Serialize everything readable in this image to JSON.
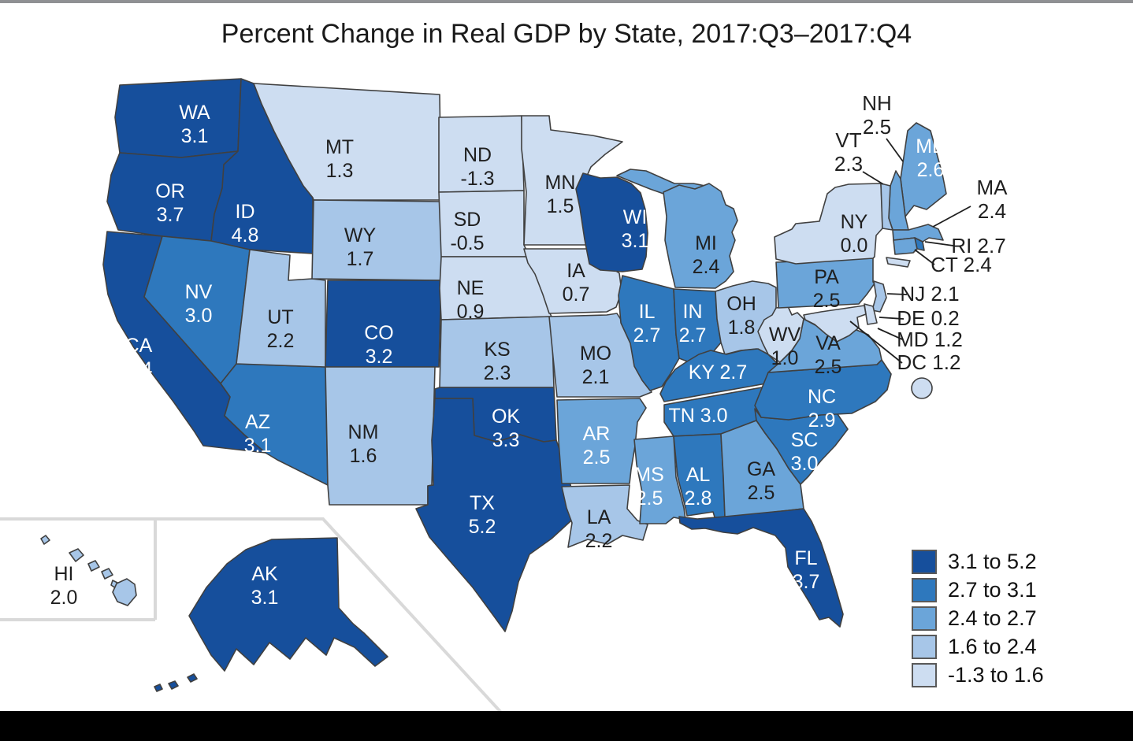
{
  "title": "Percent Change in Real GDP by State, 2017:Q3–2017:Q4",
  "legend": {
    "entries": [
      {
        "label": "3.1 to 5.2",
        "color": "#164f9c"
      },
      {
        "label": "2.7 to 3.1",
        "color": "#2e78bd"
      },
      {
        "label": "2.4 to 2.7",
        "color": "#6ba5d9"
      },
      {
        "label": "1.6 to 2.4",
        "color": "#a7c6e8"
      },
      {
        "label": "-1.3 to 1.6",
        "color": "#cdddf1"
      }
    ]
  },
  "colors": {
    "state_border": "#404040",
    "label_dark": "#1f1f1f",
    "label_light": "#ffffff",
    "inset_line": "#d9d9d9",
    "leader_line": "#1f1f1f",
    "bottom_bar": "#000000"
  },
  "chart_data": {
    "type": "choropleth",
    "title": "Percent Change in Real GDP by State, 2017:Q3–2017:Q4",
    "unit": "percent change in real GDP",
    "legend_bins": [
      "3.1 to 5.2",
      "2.7 to 3.1",
      "2.4 to 2.7",
      "1.6 to 2.4",
      "-1.3 to 1.6"
    ],
    "states": [
      {
        "abbr": "WA",
        "value": 3.1,
        "display": "3.1",
        "bin": 0,
        "label_style": "light"
      },
      {
        "abbr": "OR",
        "value": 3.7,
        "display": "3.7",
        "bin": 0,
        "label_style": "light"
      },
      {
        "abbr": "CA",
        "value": 3.4,
        "display": "3.4",
        "bin": 0,
        "label_style": "light"
      },
      {
        "abbr": "ID",
        "value": 4.8,
        "display": "4.8",
        "bin": 0,
        "label_style": "light"
      },
      {
        "abbr": "NV",
        "value": 3.0,
        "display": "3.0",
        "bin": 1,
        "label_style": "light"
      },
      {
        "abbr": "AZ",
        "value": 3.1,
        "display": "3.1",
        "bin": 1,
        "label_style": "light"
      },
      {
        "abbr": "UT",
        "value": 2.2,
        "display": "2.2",
        "bin": 3,
        "label_style": "dark"
      },
      {
        "abbr": "MT",
        "value": 1.3,
        "display": "1.3",
        "bin": 4,
        "label_style": "dark"
      },
      {
        "abbr": "WY",
        "value": 1.7,
        "display": "1.7",
        "bin": 3,
        "label_style": "dark"
      },
      {
        "abbr": "CO",
        "value": 3.2,
        "display": "3.2",
        "bin": 0,
        "label_style": "light"
      },
      {
        "abbr": "NM",
        "value": 1.6,
        "display": "1.6",
        "bin": 3,
        "label_style": "dark"
      },
      {
        "abbr": "ND",
        "value": -1.3,
        "display": "-1.3",
        "bin": 4,
        "label_style": "dark"
      },
      {
        "abbr": "SD",
        "value": -0.5,
        "display": "-0.5",
        "bin": 4,
        "label_style": "dark"
      },
      {
        "abbr": "NE",
        "value": 0.9,
        "display": "0.9",
        "bin": 4,
        "label_style": "dark"
      },
      {
        "abbr": "KS",
        "value": 2.3,
        "display": "2.3",
        "bin": 3,
        "label_style": "dark"
      },
      {
        "abbr": "OK",
        "value": 3.3,
        "display": "3.3",
        "bin": 0,
        "label_style": "light"
      },
      {
        "abbr": "TX",
        "value": 5.2,
        "display": "5.2",
        "bin": 0,
        "label_style": "light"
      },
      {
        "abbr": "MN",
        "value": 1.5,
        "display": "1.5",
        "bin": 4,
        "label_style": "dark"
      },
      {
        "abbr": "IA",
        "value": 0.7,
        "display": "0.7",
        "bin": 4,
        "label_style": "dark"
      },
      {
        "abbr": "MO",
        "value": 2.1,
        "display": "2.1",
        "bin": 3,
        "label_style": "dark"
      },
      {
        "abbr": "AR",
        "value": 2.5,
        "display": "2.5",
        "bin": 2,
        "label_style": "light"
      },
      {
        "abbr": "LA",
        "value": 2.2,
        "display": "2.2",
        "bin": 3,
        "label_style": "dark"
      },
      {
        "abbr": "WI",
        "value": 3.1,
        "display": "3.1",
        "bin": 0,
        "label_style": "light"
      },
      {
        "abbr": "IL",
        "value": 2.7,
        "display": "2.7",
        "bin": 1,
        "label_style": "light"
      },
      {
        "abbr": "IN",
        "value": 2.7,
        "display": "2.7",
        "bin": 1,
        "label_style": "light"
      },
      {
        "abbr": "MI",
        "value": 2.4,
        "display": "2.4",
        "bin": 2,
        "label_style": "dark"
      },
      {
        "abbr": "OH",
        "value": 1.8,
        "display": "1.8",
        "bin": 3,
        "label_style": "dark"
      },
      {
        "abbr": "KY",
        "value": 2.7,
        "display": "2.7",
        "bin": 1,
        "label_style": "light"
      },
      {
        "abbr": "TN",
        "value": 3.0,
        "display": "3.0",
        "bin": 1,
        "label_style": "light"
      },
      {
        "abbr": "MS",
        "value": 2.5,
        "display": "2.5",
        "bin": 2,
        "label_style": "light"
      },
      {
        "abbr": "AL",
        "value": 2.8,
        "display": "2.8",
        "bin": 1,
        "label_style": "light"
      },
      {
        "abbr": "GA",
        "value": 2.5,
        "display": "2.5",
        "bin": 2,
        "label_style": "dark"
      },
      {
        "abbr": "FL",
        "value": 3.7,
        "display": "3.7",
        "bin": 0,
        "label_style": "light"
      },
      {
        "abbr": "SC",
        "value": 3.0,
        "display": "3.0",
        "bin": 1,
        "label_style": "light"
      },
      {
        "abbr": "NC",
        "value": 2.9,
        "display": "2.9",
        "bin": 1,
        "label_style": "light"
      },
      {
        "abbr": "VA",
        "value": 2.5,
        "display": "2.5",
        "bin": 2,
        "label_style": "dark"
      },
      {
        "abbr": "WV",
        "value": 1.0,
        "display": "1.0",
        "bin": 4,
        "label_style": "dark"
      },
      {
        "abbr": "PA",
        "value": 2.5,
        "display": "2.5",
        "bin": 2,
        "label_style": "dark"
      },
      {
        "abbr": "NY",
        "value": 0.0,
        "display": "0.0",
        "bin": 4,
        "label_style": "dark"
      },
      {
        "abbr": "ME",
        "value": 2.6,
        "display": "2.6",
        "bin": 2,
        "label_style": "light"
      },
      {
        "abbr": "NH",
        "value": 2.5,
        "display": "2.5",
        "bin": 2,
        "label_style": "dark",
        "callout": true
      },
      {
        "abbr": "VT",
        "value": 2.3,
        "display": "2.3",
        "bin": 3,
        "label_style": "dark",
        "callout": true
      },
      {
        "abbr": "MA",
        "value": 2.4,
        "display": "2.4",
        "bin": 2,
        "label_style": "dark",
        "callout": true
      },
      {
        "abbr": "RI",
        "value": 2.7,
        "display": "2.7",
        "bin": 1,
        "label_style": "dark",
        "callout": true
      },
      {
        "abbr": "CT",
        "value": 2.4,
        "display": "2.4",
        "bin": 2,
        "label_style": "dark",
        "callout": true
      },
      {
        "abbr": "NJ",
        "value": 2.1,
        "display": "2.1",
        "bin": 3,
        "label_style": "dark",
        "callout": true
      },
      {
        "abbr": "DE",
        "value": 0.2,
        "display": "0.2",
        "bin": 4,
        "label_style": "dark",
        "callout": true
      },
      {
        "abbr": "MD",
        "value": 1.2,
        "display": "1.2",
        "bin": 4,
        "label_style": "dark",
        "callout": true
      },
      {
        "abbr": "DC",
        "value": 1.2,
        "display": "1.2",
        "bin": 4,
        "label_style": "dark",
        "callout": true
      },
      {
        "abbr": "AK",
        "value": 3.1,
        "display": "3.1",
        "bin": 0,
        "label_style": "light"
      },
      {
        "abbr": "HI",
        "value": 2.0,
        "display": "2.0",
        "bin": 3,
        "label_style": "dark"
      }
    ]
  }
}
